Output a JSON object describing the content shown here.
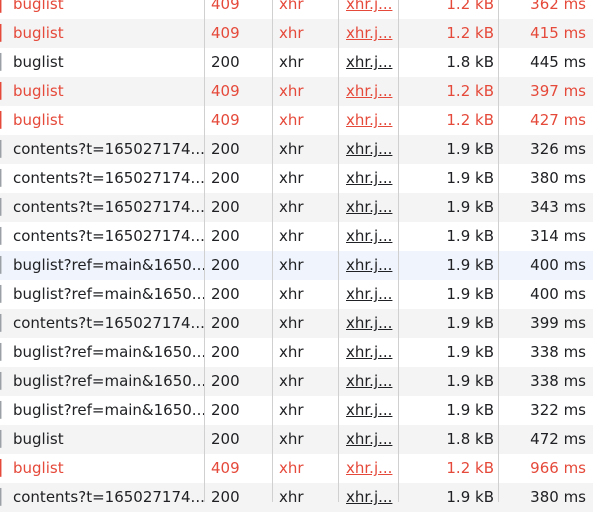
{
  "requests": [
    {
      "name": "buglist",
      "status": "409",
      "type": "xhr",
      "initiator": "xhr.j...",
      "size": "1.2 kB",
      "time": "362 ms",
      "error": true
    },
    {
      "name": "buglist",
      "status": "409",
      "type": "xhr",
      "initiator": "xhr.j...",
      "size": "1.2 kB",
      "time": "415 ms",
      "error": true
    },
    {
      "name": "buglist",
      "status": "200",
      "type": "xhr",
      "initiator": "xhr.j...",
      "size": "1.8 kB",
      "time": "445 ms",
      "error": false
    },
    {
      "name": "buglist",
      "status": "409",
      "type": "xhr",
      "initiator": "xhr.j...",
      "size": "1.2 kB",
      "time": "397 ms",
      "error": true
    },
    {
      "name": "buglist",
      "status": "409",
      "type": "xhr",
      "initiator": "xhr.j...",
      "size": "1.2 kB",
      "time": "427 ms",
      "error": true
    },
    {
      "name": "contents?t=165027174...",
      "status": "200",
      "type": "xhr",
      "initiator": "xhr.j...",
      "size": "1.9 kB",
      "time": "326 ms",
      "error": false
    },
    {
      "name": "contents?t=165027174...",
      "status": "200",
      "type": "xhr",
      "initiator": "xhr.j...",
      "size": "1.9 kB",
      "time": "380 ms",
      "error": false
    },
    {
      "name": "contents?t=165027174...",
      "status": "200",
      "type": "xhr",
      "initiator": "xhr.j...",
      "size": "1.9 kB",
      "time": "343 ms",
      "error": false
    },
    {
      "name": "contents?t=165027174...",
      "status": "200",
      "type": "xhr",
      "initiator": "xhr.j...",
      "size": "1.9 kB",
      "time": "314 ms",
      "error": false
    },
    {
      "name": "buglist?ref=main&1650...",
      "status": "200",
      "type": "xhr",
      "initiator": "xhr.j...",
      "size": "1.9 kB",
      "time": "400 ms",
      "error": false
    },
    {
      "name": "buglist?ref=main&1650...",
      "status": "200",
      "type": "xhr",
      "initiator": "xhr.j...",
      "size": "1.9 kB",
      "time": "400 ms",
      "error": false
    },
    {
      "name": "contents?t=165027174...",
      "status": "200",
      "type": "xhr",
      "initiator": "xhr.j...",
      "size": "1.9 kB",
      "time": "399 ms",
      "error": false
    },
    {
      "name": "buglist?ref=main&1650...",
      "status": "200",
      "type": "xhr",
      "initiator": "xhr.j...",
      "size": "1.9 kB",
      "time": "338 ms",
      "error": false
    },
    {
      "name": "buglist?ref=main&1650...",
      "status": "200",
      "type": "xhr",
      "initiator": "xhr.j...",
      "size": "1.9 kB",
      "time": "338 ms",
      "error": false
    },
    {
      "name": "buglist?ref=main&1650...",
      "status": "200",
      "type": "xhr",
      "initiator": "xhr.j...",
      "size": "1.9 kB",
      "time": "322 ms",
      "error": false
    },
    {
      "name": "buglist",
      "status": "200",
      "type": "xhr",
      "initiator": "xhr.j...",
      "size": "1.8 kB",
      "time": "472 ms",
      "error": false
    },
    {
      "name": "buglist",
      "status": "409",
      "type": "xhr",
      "initiator": "xhr.j...",
      "size": "1.2 kB",
      "time": "966 ms",
      "error": true
    },
    {
      "name": "contents?t=165027174...",
      "status": "200",
      "type": "xhr",
      "initiator": "xhr.j...",
      "size": "1.9 kB",
      "time": "380 ms",
      "error": false
    }
  ],
  "selected_row": 9,
  "colors": {
    "error_text": "#e5493a",
    "normal_text": "#202124",
    "alt_row": "#f4f4f4",
    "selected_row": "#f0f5fd",
    "column_divider": "#d0d0d0"
  }
}
